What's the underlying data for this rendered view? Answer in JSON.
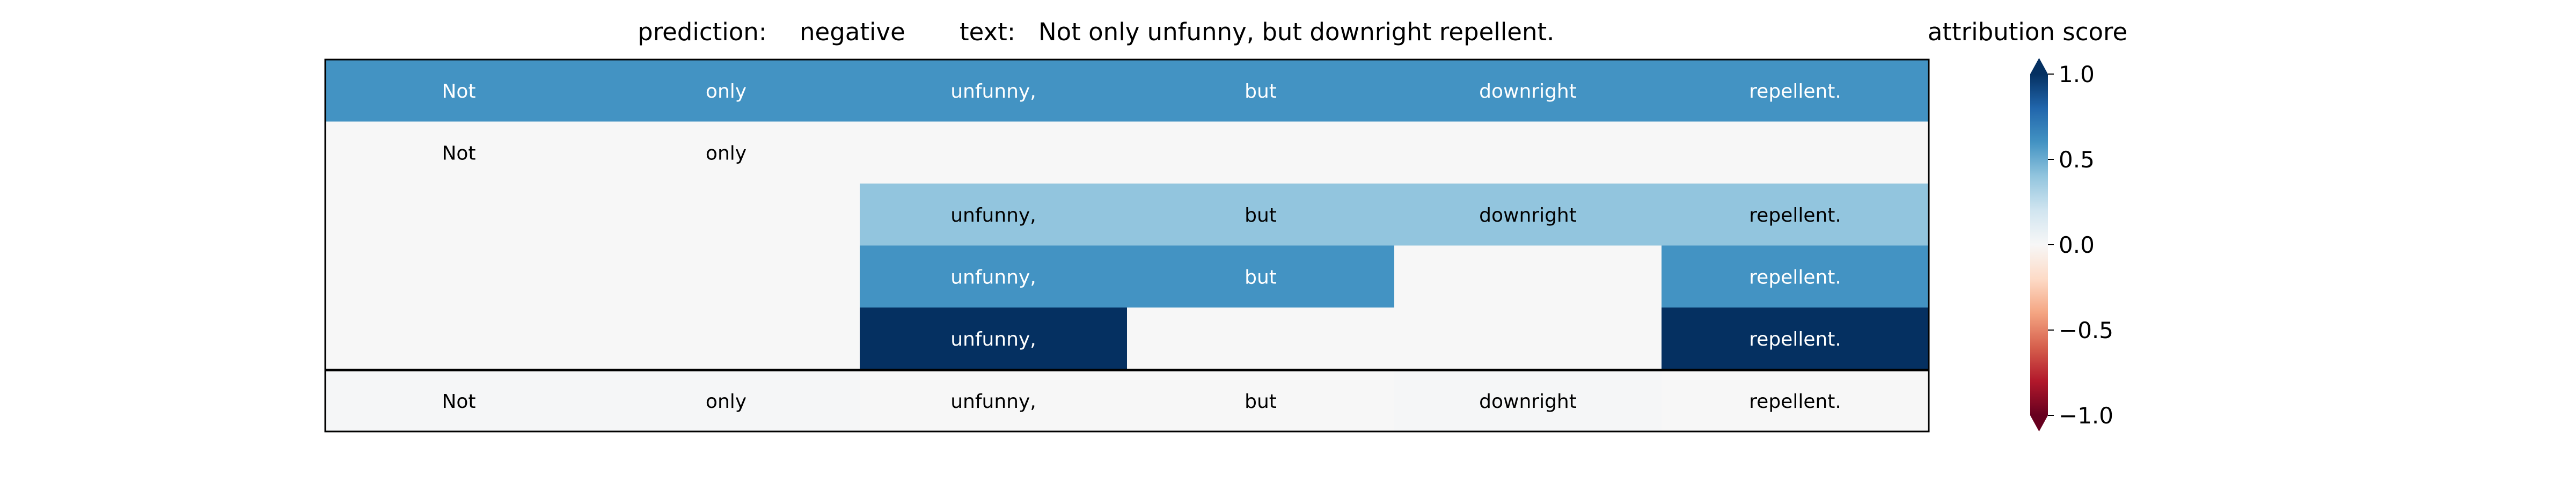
{
  "chart_data": {
    "type": "heatmap",
    "header": {
      "prediction_label": "prediction:",
      "prediction_value": "negative",
      "text_label": "text:",
      "text_value": "Not only unfunny, but downright repellent."
    },
    "tokens": [
      "Not",
      "only",
      "unfunny,",
      "but",
      "downright",
      "repellent."
    ],
    "rows": [
      {
        "values": [
          0.6,
          0.6,
          0.6,
          0.6,
          0.6,
          0.6
        ],
        "show_token": [
          true,
          true,
          true,
          true,
          true,
          true
        ]
      },
      {
        "values": [
          0.0,
          0.0,
          0.0,
          0.0,
          0.0,
          0.0
        ],
        "show_token": [
          true,
          true,
          false,
          false,
          false,
          false
        ]
      },
      {
        "values": [
          0.0,
          0.0,
          0.4,
          0.4,
          0.4,
          0.4
        ],
        "show_token": [
          false,
          false,
          true,
          true,
          true,
          true
        ]
      },
      {
        "values": [
          0.0,
          0.0,
          0.6,
          0.6,
          0.0,
          0.6
        ],
        "show_token": [
          false,
          false,
          true,
          true,
          false,
          true
        ]
      },
      {
        "values": [
          0.0,
          0.0,
          1.0,
          0.0,
          0.0,
          1.0
        ],
        "show_token": [
          false,
          false,
          true,
          false,
          false,
          true
        ]
      }
    ],
    "summary_row": {
      "values": [
        0.01,
        0.01,
        0.0,
        0.0,
        0.01,
        0.0
      ],
      "show_token": [
        true,
        true,
        true,
        true,
        true,
        true
      ]
    },
    "colorbar": {
      "title": "attribution score",
      "colormap": "RdBu",
      "vmin": -1.0,
      "vmax": 1.0,
      "ticks": [
        1.0,
        0.5,
        0.0,
        -0.5,
        -1.0
      ],
      "tick_labels": [
        "1.0",
        "0.5",
        "0.0",
        "−0.5",
        "−1.0"
      ],
      "extend": "both"
    },
    "colors": {
      "text_dark": "#000000",
      "text_light": "#ffffff",
      "grid_line": "#000000"
    }
  }
}
